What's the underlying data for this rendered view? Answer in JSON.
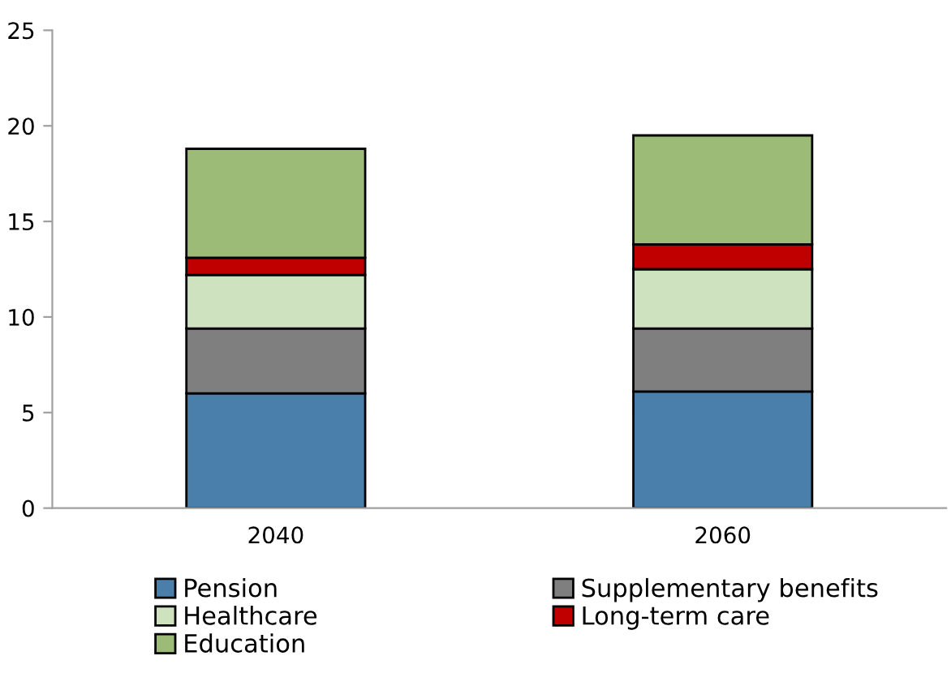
{
  "chart_data": {
    "type": "bar",
    "stacked": true,
    "categories": [
      "2040",
      "2060"
    ],
    "series": [
      {
        "name": "Pension",
        "color": "#4a7fac",
        "values": [
          6.0,
          6.1
        ]
      },
      {
        "name": "Supplementary benefits",
        "color": "#7f7f7f",
        "values": [
          3.4,
          3.3
        ]
      },
      {
        "name": "Healthcare",
        "color": "#cfe2bf",
        "values": [
          2.8,
          3.1
        ]
      },
      {
        "name": "Long-term care",
        "color": "#c00000",
        "values": [
          0.9,
          1.3
        ]
      },
      {
        "name": "Education",
        "color": "#9bbb77",
        "values": [
          5.7,
          5.7
        ]
      }
    ],
    "ylim": [
      0,
      25
    ],
    "yticks": [
      0,
      5,
      10,
      15,
      20,
      25
    ],
    "grid": false,
    "legend": "bottom"
  }
}
